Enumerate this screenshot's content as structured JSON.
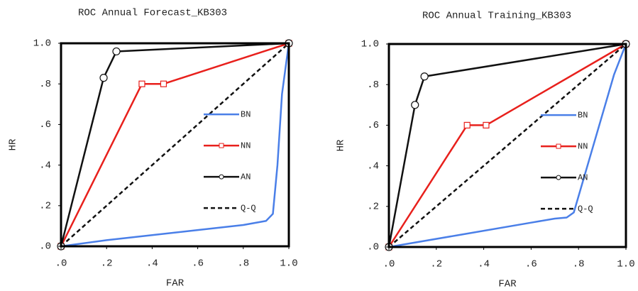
{
  "chart_data": [
    {
      "type": "line",
      "title": "ROC Annual Forecast_KB303",
      "x_label": "FAR",
      "y_label": "HR",
      "xlim": [
        0,
        1
      ],
      "ylim": [
        0,
        1
      ],
      "xticks": [
        {
          "value": 0,
          "label": ".0"
        },
        {
          "value": 0.2,
          "label": ".2"
        },
        {
          "value": 0.4,
          "label": ".4"
        },
        {
          "value": 0.6,
          "label": ".6"
        },
        {
          "value": 0.8,
          "label": ".8"
        },
        {
          "value": 1,
          "label": "1.0"
        }
      ],
      "yticks": [
        {
          "value": 0,
          "label": ".0"
        },
        {
          "value": 0.2,
          "label": ".2"
        },
        {
          "value": 0.4,
          "label": ".4"
        },
        {
          "value": 0.6,
          "label": ".6"
        },
        {
          "value": 0.8,
          "label": ".8"
        },
        {
          "value": 1,
          "label": "1.0"
        }
      ],
      "grid": false,
      "legend": "right",
      "series": [
        {
          "name": "BN",
          "color": "#4a7fe8",
          "marker": "none",
          "dash": false,
          "x": [
            0,
            0.2,
            0.4,
            0.6,
            0.8,
            0.9,
            0.93,
            0.95,
            0.97,
            1
          ],
          "values": [
            0,
            0.03,
            0.055,
            0.08,
            0.105,
            0.125,
            0.16,
            0.4,
            0.75,
            1
          ]
        },
        {
          "name": "NN",
          "color": "#e8201c",
          "marker": "square",
          "dash": false,
          "x": [
            0,
            0.355,
            0.45,
            1
          ],
          "values": [
            0,
            0.8,
            0.8,
            1
          ]
        },
        {
          "name": "AN",
          "color": "#111111",
          "marker": "circle",
          "dash": false,
          "x": [
            0,
            0.187,
            0.243,
            1
          ],
          "values": [
            0,
            0.83,
            0.96,
            1
          ]
        },
        {
          "name": "Q-Q",
          "color": "#111111",
          "marker": "none",
          "dash": true,
          "x": [
            0,
            1
          ],
          "values": [
            0,
            1
          ]
        }
      ]
    },
    {
      "type": "line",
      "title": "ROC Annual Training_KB303",
      "x_label": "FAR",
      "y_label": "HR",
      "xlim": [
        0,
        1
      ],
      "ylim": [
        0,
        1
      ],
      "xticks": [
        {
          "value": 0,
          "label": ".0"
        },
        {
          "value": 0.2,
          "label": ".2"
        },
        {
          "value": 0.4,
          "label": ".4"
        },
        {
          "value": 0.6,
          "label": ".6"
        },
        {
          "value": 0.8,
          "label": ".8"
        },
        {
          "value": 1,
          "label": "1.0"
        }
      ],
      "yticks": [
        {
          "value": 0,
          "label": ".0"
        },
        {
          "value": 0.2,
          "label": ".2"
        },
        {
          "value": 0.4,
          "label": ".4"
        },
        {
          "value": 0.6,
          "label": ".6"
        },
        {
          "value": 0.8,
          "label": ".8"
        },
        {
          "value": 1,
          "label": "1.0"
        }
      ],
      "grid": false,
      "legend": "right",
      "series": [
        {
          "name": "BN",
          "color": "#4a7fe8",
          "marker": "none",
          "dash": false,
          "x": [
            0,
            0.3,
            0.6,
            0.7,
            0.75,
            0.78,
            0.85,
            0.95,
            1
          ],
          "values": [
            0,
            0.06,
            0.12,
            0.14,
            0.145,
            0.17,
            0.45,
            0.85,
            1
          ]
        },
        {
          "name": "NN",
          "color": "#e8201c",
          "marker": "square",
          "dash": false,
          "x": [
            0,
            0.33,
            0.41,
            1
          ],
          "values": [
            0,
            0.6,
            0.6,
            1
          ]
        },
        {
          "name": "AN",
          "color": "#111111",
          "marker": "circle",
          "dash": false,
          "x": [
            0,
            0.11,
            0.15,
            1
          ],
          "values": [
            0,
            0.7,
            0.84,
            1
          ]
        },
        {
          "name": "Q-Q",
          "color": "#111111",
          "marker": "none",
          "dash": true,
          "x": [
            0,
            1
          ],
          "values": [
            0,
            1
          ]
        }
      ]
    }
  ]
}
